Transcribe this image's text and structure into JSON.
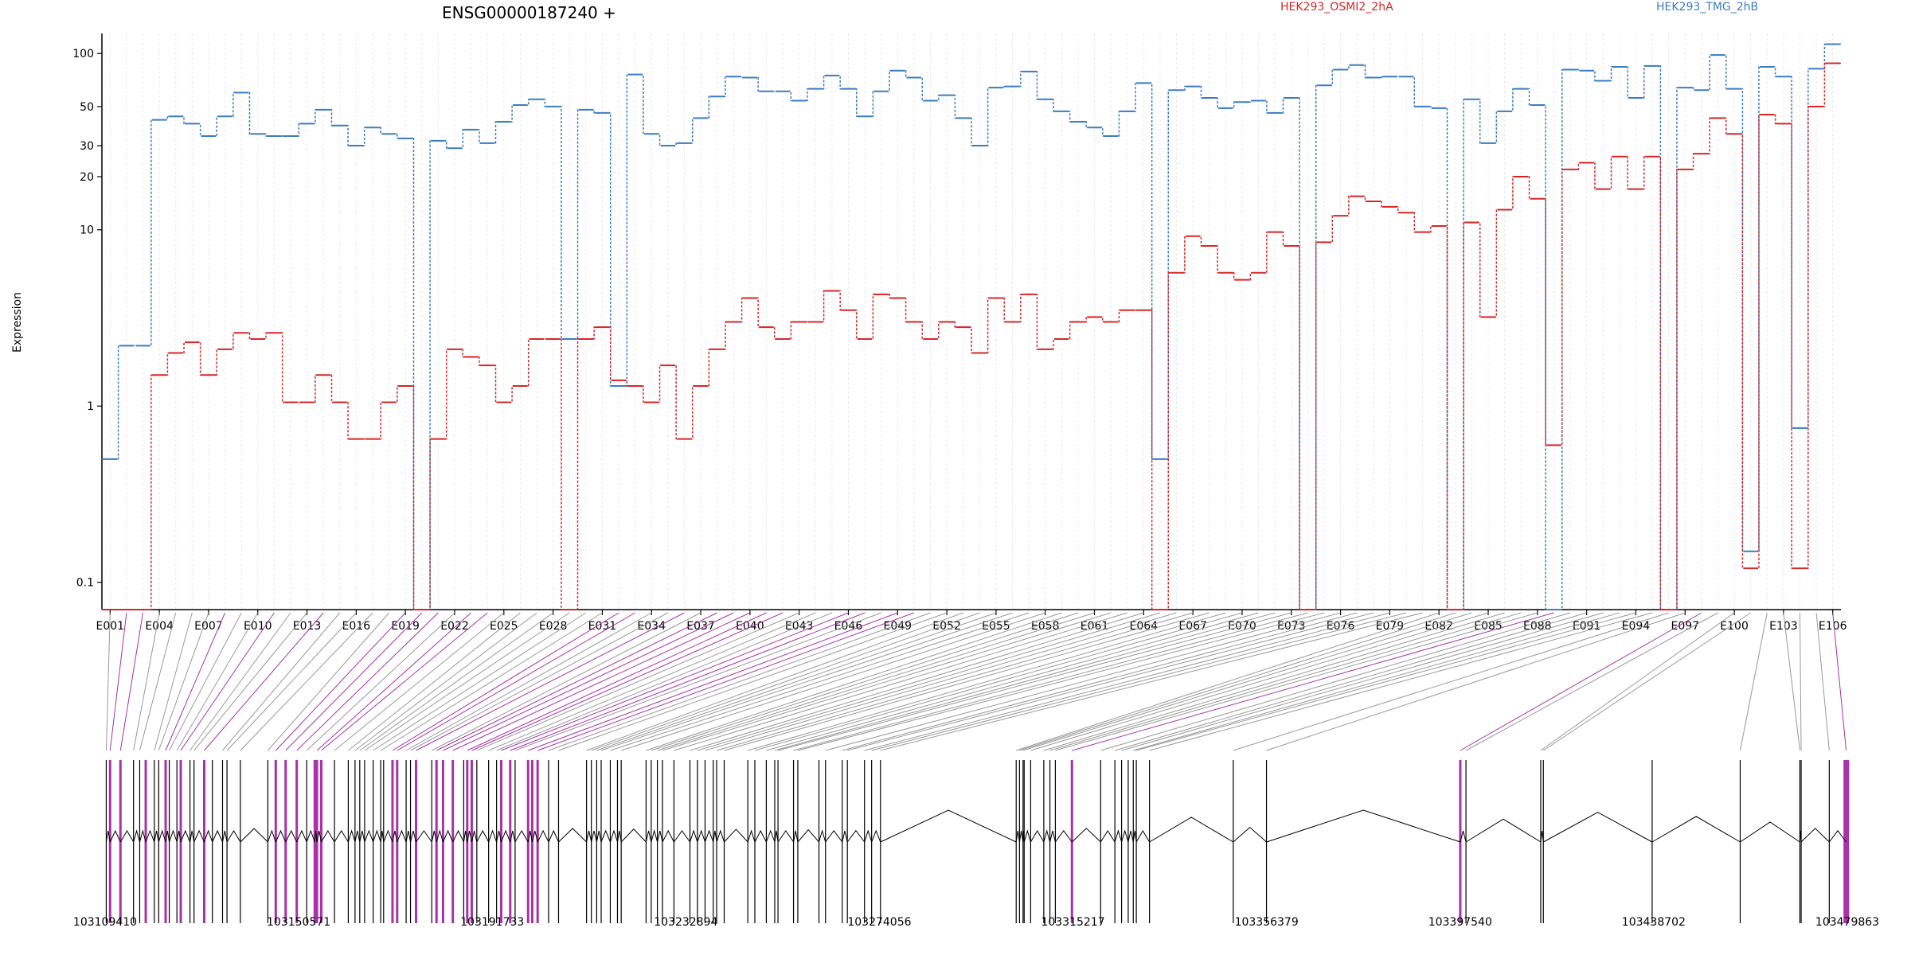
{
  "chart_data": [
    {
      "type": "line",
      "title": "ENSG00000187240 +",
      "ylabel": "Expression",
      "yscale": "log",
      "ylim": [
        0.07,
        130
      ],
      "ytick_values": [
        0.1,
        1,
        10,
        20,
        30,
        50,
        100
      ],
      "ytick_labels": [
        "0.1",
        "1",
        "10",
        "20",
        "30",
        "50",
        "100"
      ],
      "grid": "vertical lines at each exon",
      "legend_placement": "top",
      "exons": [
        "E001",
        "E002",
        "E003",
        "E004",
        "E005",
        "E006",
        "E007",
        "E008",
        "E009",
        "E010",
        "E011",
        "E012",
        "E013",
        "E014",
        "E015",
        "E016",
        "E017",
        "E018",
        "E019",
        "E020",
        "E021",
        "E022",
        "E023",
        "E024",
        "E025",
        "E026",
        "E027",
        "E028",
        "E029",
        "E030",
        "E031",
        "E032",
        "E033",
        "E034",
        "E035",
        "E036",
        "E037",
        "E038",
        "E039",
        "E040",
        "E041",
        "E042",
        "E043",
        "E044",
        "E045",
        "E046",
        "E047",
        "E048",
        "E049",
        "E050",
        "E051",
        "E052",
        "E053",
        "E054",
        "E055",
        "E056",
        "E057",
        "E058",
        "E059",
        "E060",
        "E061",
        "E062",
        "E063",
        "E064",
        "E065",
        "E066",
        "E067",
        "E068",
        "E069",
        "E070",
        "E071",
        "E072",
        "E073",
        "E074",
        "E075",
        "E076",
        "E077",
        "E078",
        "E079",
        "E080",
        "E081",
        "E082",
        "E083",
        "E084",
        "E085",
        "E086",
        "E087",
        "E088",
        "E089",
        "E090",
        "E091",
        "E092",
        "E093",
        "E094",
        "E095",
        "E096",
        "E097",
        "E098",
        "E099",
        "E100",
        "E101",
        "E102",
        "E103",
        "E104",
        "E105",
        "E106"
      ],
      "exon_tick_labels": [
        "E001",
        "E004",
        "E007",
        "E010",
        "E013",
        "E016",
        "E019",
        "E022",
        "E025",
        "E028",
        "E031",
        "E034",
        "E037",
        "E040",
        "E043",
        "E046",
        "E049",
        "E052",
        "E055",
        "E058",
        "E061",
        "E064",
        "E067",
        "E070",
        "E073",
        "E076",
        "E079",
        "E082",
        "E085",
        "E088",
        "E091",
        "E094",
        "E097",
        "E100",
        "E103",
        "E106"
      ],
      "series": [
        {
          "name": "HEK293_TMG_2hB",
          "color": "#3a7cc2",
          "values": [
            0.5,
            2.2,
            2.2,
            42,
            44,
            40,
            34,
            44,
            60,
            35,
            34,
            34,
            40,
            48,
            39,
            30,
            38,
            35,
            33,
            0.07,
            32,
            29,
            37,
            31,
            41,
            51,
            55,
            50,
            2.4,
            48,
            46,
            1.3,
            76,
            35,
            30,
            31,
            43,
            57,
            74,
            73,
            61,
            61,
            54,
            63,
            75,
            63,
            44,
            61,
            80,
            73,
            54,
            58,
            43,
            30,
            64,
            65,
            79,
            55,
            47,
            41,
            38,
            34,
            47,
            68,
            0.5,
            62,
            65,
            56,
            49,
            53,
            54,
            46,
            56,
            0.07,
            66,
            81,
            86,
            73,
            74,
            74,
            50,
            49,
            0.07,
            55,
            31,
            47,
            63,
            51,
            0.07,
            81,
            80,
            70,
            84,
            56,
            85,
            0.07,
            64,
            62,
            98,
            63,
            0.15,
            84,
            74,
            0.75,
            82,
            113
          ],
          "missing": "exons E020, E073, E083, E089 and E096 drop to the bottom of the axis"
        },
        {
          "name": "HEK293_OSMI2_2hA",
          "color": "#d62728",
          "values": [
            0.07,
            0.07,
            0.07,
            1.5,
            2.0,
            2.3,
            1.5,
            2.1,
            2.6,
            2.4,
            2.6,
            1.05,
            1.05,
            1.5,
            1.05,
            0.65,
            0.65,
            1.05,
            1.3,
            0.07,
            0.65,
            2.1,
            1.9,
            1.7,
            1.05,
            1.3,
            2.4,
            2.4,
            0.07,
            2.4,
            2.8,
            1.4,
            1.3,
            1.05,
            1.7,
            0.65,
            1.3,
            2.1,
            3.0,
            4.1,
            2.8,
            2.4,
            3.0,
            3.0,
            4.5,
            3.5,
            2.4,
            4.3,
            4.1,
            3.0,
            2.4,
            3.0,
            2.8,
            2.0,
            4.1,
            3.0,
            4.3,
            2.1,
            2.4,
            3.0,
            3.2,
            3.0,
            3.5,
            3.5,
            0.07,
            5.7,
            9.2,
            8.1,
            5.7,
            5.2,
            5.7,
            9.7,
            8.1,
            0.07,
            8.5,
            12,
            15.5,
            14.5,
            13.5,
            12.5,
            9.7,
            10.5,
            0.07,
            11,
            3.2,
            13,
            20,
            15,
            0.6,
            22,
            24,
            17,
            26,
            17,
            26,
            0.07,
            22,
            27,
            43,
            35,
            0.12,
            45,
            40,
            0.12,
            50,
            88
          ]
        }
      ],
      "legend": [
        {
          "label": "HEK293_OSMI2_2hA",
          "color": "#d62728"
        },
        {
          "label": "HEK293_TMG_2hB",
          "color": "#3a7cc2"
        }
      ]
    },
    {
      "type": "gene-structure",
      "xlim": [
        103109410,
        103479863
      ],
      "xtick_labels": [
        "103109410",
        "103150571",
        "103191733",
        "103232894",
        "103274056",
        "103315217",
        "103356379",
        "103397540",
        "103438702",
        "103479863"
      ],
      "exon_positions": [
        103109650,
        103110470,
        103112670,
        103115450,
        103116770,
        103118050,
        103119870,
        103120810,
        103122280,
        103123050,
        103124680,
        103125500,
        103127460,
        103128320,
        103130490,
        103132220,
        103134380,
        103135330,
        103138170,
        103144020,
        103145700,
        103147800,
        103150160,
        103152280,
        103153990,
        103154460,
        103155380,
        103158180,
        103161120,
        103162550,
        103163560,
        103164590,
        103166400,
        103168010,
        103168630,
        103170520,
        103171510,
        103173420,
        103174350,
        103175530,
        103178880,
        103179880,
        103181270,
        103183350,
        103185660,
        103186410,
        103187370,
        103188450,
        103190960,
        103192650,
        103193640,
        103195550,
        103196590,
        103199360,
        103200230,
        103201380,
        103203710,
        103205830,
        103211780,
        103212800,
        103213940,
        103214890,
        103216830,
        103218360,
        103219150,
        103224440,
        103225530,
        103226840,
        103227920,
        103230370,
        103233770,
        103235360,
        103236980,
        103238720,
        103239450,
        103241050,
        103246080,
        103247570,
        103250010,
        103251800,
        103252490,
        103255790,
        103256700,
        103261200,
        103262590,
        103266150,
        103267240,
        103270880,
        103272400,
        103274280,
        103303140,
        103303840,
        103304590,
        103304840,
        103306220,
        103309010,
        103310310,
        103311470,
        103321100,
        103324120,
        103325550,
        103326960,
        103328040,
        103328680,
        103331480,
        103349290,
        103356360,
        103397570,
        103398780,
        103414670,
        103415230,
        103438370,
        103457090,
        103469780,
        103470050,
        103476030
      ],
      "highlighted_exon_positions": [
        103110470,
        103112670,
        103118050,
        103122280,
        103125500,
        103130490,
        103145700,
        103147800,
        103150160,
        103153990,
        103154460,
        103155380,
        103170520,
        103171510,
        103175530,
        103179880,
        103181270,
        103183350,
        103186410,
        103187370,
        103193640,
        103195550,
        103199360,
        103200230,
        103201380,
        103315000,
        103397570,
        103479620
      ],
      "highlighted_color": "#a832a8"
    }
  ]
}
